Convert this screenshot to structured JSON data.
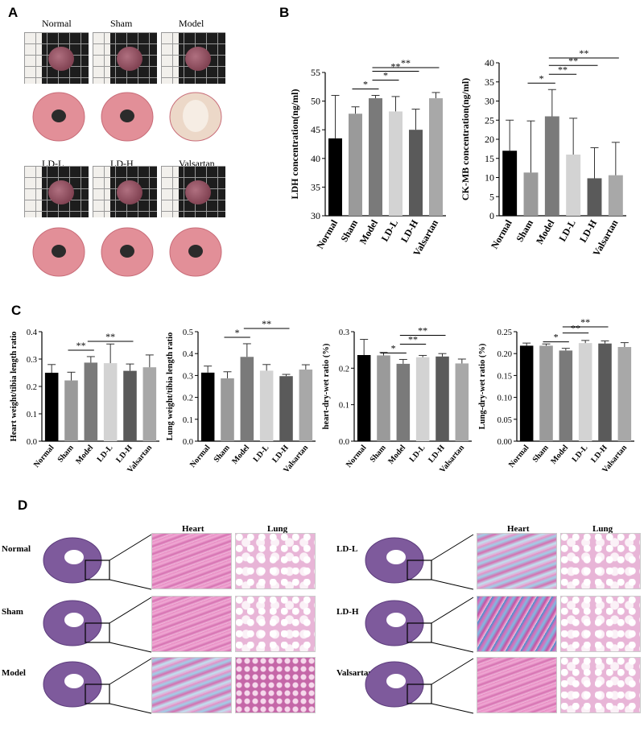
{
  "panels": {
    "a": "A",
    "b": "B",
    "c": "C",
    "d": "D"
  },
  "panel_a": {
    "labels": [
      "Normal",
      "Sham",
      "Model",
      "LD-L",
      "LD-H",
      "Valsartan"
    ]
  },
  "panel_d": {
    "col_heart": "Heart",
    "col_lung": "Lung",
    "rows_left": [
      "Normal",
      "Sham",
      "Model"
    ],
    "rows_right": [
      "LD-L",
      "LD-H",
      "Valsartan"
    ],
    "col_heart_right": "Heart",
    "col_lung_right": "Lung"
  },
  "colors": {
    "Normal": "#000000",
    "Sham": "#9a9a9a",
    "Model": "#7a7a7a",
    "LD-L": "#d3d3d3",
    "LD-H": "#5a5a5a",
    "Valsartan": "#a8a8a8"
  },
  "chart_data": [
    {
      "id": "ldh",
      "type": "bar",
      "categories": [
        "Normal",
        "Sham",
        "Model",
        "LD-L",
        "LD-H",
        "Valsartan"
      ],
      "values": [
        43.5,
        47.8,
        50.5,
        48.2,
        45.0,
        50.5
      ],
      "errors": [
        7.5,
        1.2,
        0.5,
        2.6,
        3.6,
        1.0
      ],
      "ylabel": "LDH concentration(ng/ml)",
      "ylim": [
        30,
        55
      ],
      "yticks": [
        "30",
        "35",
        "40",
        "45",
        "50",
        "55"
      ],
      "sig": [
        {
          "from": 1,
          "to": 2,
          "label": "*"
        },
        {
          "from": 2,
          "to": 3,
          "label": "*"
        },
        {
          "from": 2,
          "to": 4,
          "label": "**"
        },
        {
          "from": 2,
          "to": 5,
          "label": "**"
        }
      ]
    },
    {
      "id": "ckmb",
      "type": "bar",
      "categories": [
        "Normal",
        "Sham",
        "Model",
        "LD-L",
        "LD-H",
        "Valsartan"
      ],
      "values": [
        17.0,
        11.3,
        26.0,
        16.0,
        9.8,
        10.6
      ],
      "errors": [
        8.0,
        13.5,
        7.0,
        9.5,
        8.0,
        8.6
      ],
      "ylabel": "CK-MB concentration(ng/ml)",
      "ylim": [
        0,
        40
      ],
      "yticks": [
        "0",
        "5",
        "10",
        "15",
        "20",
        "25",
        "30",
        "35",
        "40"
      ],
      "sig": [
        {
          "from": 1,
          "to": 2,
          "label": "*"
        },
        {
          "from": 2,
          "to": 3,
          "label": "**"
        },
        {
          "from": 2,
          "to": 4,
          "label": "**"
        },
        {
          "from": 2,
          "to": 5,
          "label": "**"
        }
      ]
    },
    {
      "id": "heart_ratio",
      "type": "bar",
      "categories": [
        "Normal",
        "Sham",
        "Model",
        "LD-L",
        "LD-H",
        "Valsartan"
      ],
      "values": [
        0.25,
        0.222,
        0.287,
        0.285,
        0.257,
        0.27
      ],
      "errors": [
        0.03,
        0.03,
        0.022,
        0.07,
        0.025,
        0.045
      ],
      "ylabel": "Heart weight/tibia length ratio",
      "ylim": [
        0,
        0.4
      ],
      "yticks": [
        "0.0",
        "0.1",
        "0.2",
        "0.3",
        "0.4"
      ],
      "sig": [
        {
          "from": 1,
          "to": 2,
          "label": "**"
        },
        {
          "from": 2,
          "to": 4,
          "label": "**"
        }
      ]
    },
    {
      "id": "lung_ratio",
      "type": "bar",
      "categories": [
        "Normal",
        "Sham",
        "Model",
        "LD-L",
        "LD-H",
        "Valsartan"
      ],
      "values": [
        0.313,
        0.287,
        0.385,
        0.322,
        0.297,
        0.327
      ],
      "errors": [
        0.03,
        0.03,
        0.06,
        0.028,
        0.008,
        0.022
      ],
      "ylabel": "Lung weight/tibia length ratio",
      "ylim": [
        0,
        0.5
      ],
      "yticks": [
        "0.0",
        "0.1",
        "0.2",
        "0.3",
        "0.4",
        "0.5"
      ],
      "sig": [
        {
          "from": 1,
          "to": 2,
          "label": "*"
        },
        {
          "from": 2,
          "to": 4,
          "label": "**"
        }
      ]
    },
    {
      "id": "heart_drywet",
      "type": "bar",
      "categories": [
        "Normal",
        "Sham",
        "Model",
        "LD-L",
        "LD-H",
        "Valsartan"
      ],
      "values": [
        0.236,
        0.235,
        0.212,
        0.23,
        0.232,
        0.213
      ],
      "errors": [
        0.043,
        0.008,
        0.012,
        0.005,
        0.008,
        0.012
      ],
      "ylabel": "heart-dry-wet ratio (%)",
      "ylim": [
        0,
        0.3
      ],
      "yticks": [
        "0.0",
        "0.1",
        "0.2",
        "0.3"
      ],
      "sig": [
        {
          "from": 1,
          "to": 2,
          "label": "*"
        },
        {
          "from": 2,
          "to": 3,
          "label": "**"
        },
        {
          "from": 2,
          "to": 4,
          "label": "**"
        }
      ]
    },
    {
      "id": "lung_drywet",
      "type": "bar",
      "categories": [
        "Normal",
        "Sham",
        "Model",
        "LD-L",
        "LD-H",
        "Valsartan"
      ],
      "values": [
        0.218,
        0.218,
        0.207,
        0.224,
        0.223,
        0.215
      ],
      "errors": [
        0.006,
        0.004,
        0.005,
        0.006,
        0.006,
        0.01
      ],
      "ylabel": "Lung-dry-wet ratio (%)",
      "ylim": [
        0,
        0.25
      ],
      "yticks": [
        "0.00",
        "0.05",
        "0.10",
        "0.15",
        "0.20",
        "0.25"
      ],
      "sig": [
        {
          "from": 1,
          "to": 2,
          "label": "*"
        },
        {
          "from": 2,
          "to": 3,
          "label": "**"
        },
        {
          "from": 2,
          "to": 4,
          "label": "**"
        }
      ]
    }
  ]
}
